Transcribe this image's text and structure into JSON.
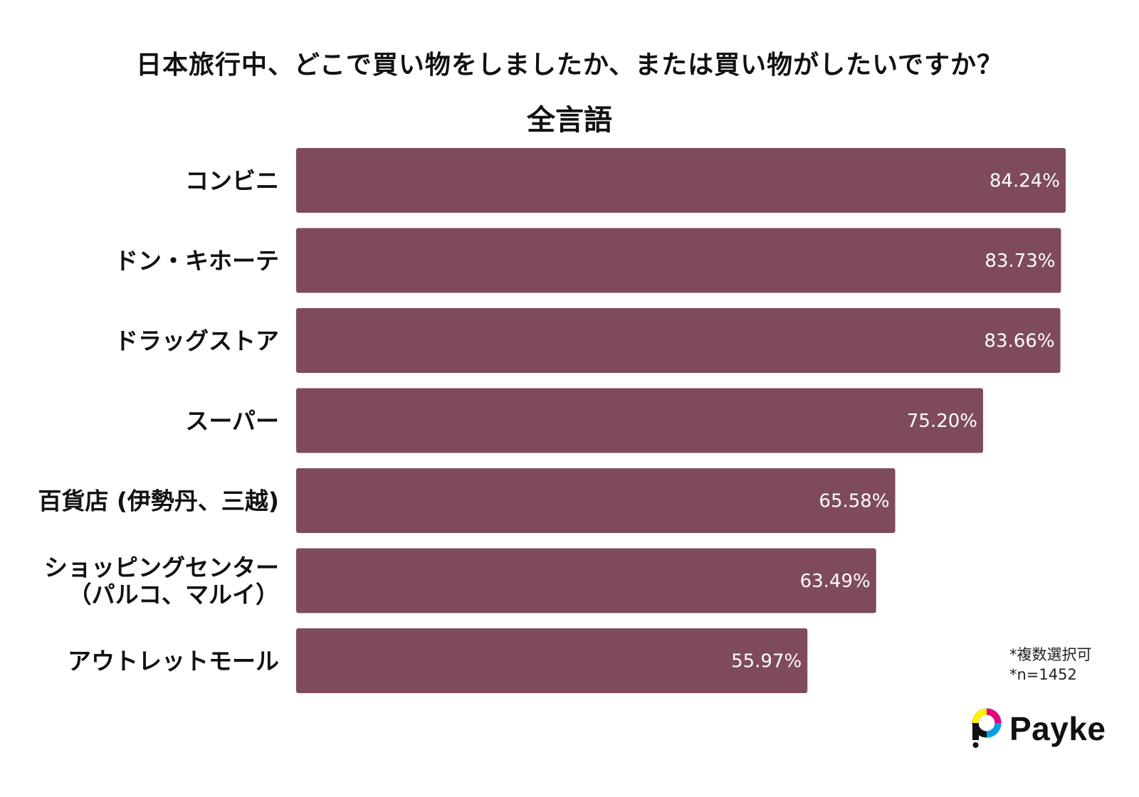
{
  "header": {
    "title": "日本旅行中、どこで買い物をしましたか、または買い物がしたいですか？",
    "subtitle": "全言語"
  },
  "chart_data": {
    "type": "bar",
    "orientation": "horizontal",
    "title": "日本旅行中、どこで買い物をしましたか、または買い物がしたいですか？",
    "subtitle": "全言語",
    "categories": [
      [
        "コンビニ"
      ],
      [
        "ドン・キホーテ"
      ],
      [
        "ドラッグストア"
      ],
      [
        "スーパー"
      ],
      [
        "百貨店 (伊勢丹、三越)"
      ],
      [
        "ショッピングセンター",
        "（パルコ、マルイ）"
      ],
      [
        "アウトレットモール"
      ]
    ],
    "values": [
      84.24,
      83.73,
      83.66,
      75.2,
      65.58,
      63.49,
      55.97
    ],
    "value_labels": [
      "84.24%",
      "83.73%",
      "83.66%",
      "75.20%",
      "65.58%",
      "63.49%",
      "55.97%"
    ],
    "unit": "%",
    "bar_color": "#7f4b5b",
    "xlim": [
      0,
      84.24
    ],
    "grid": false,
    "legend": "none"
  },
  "notes": [
    "*複数選択可",
    "*n=1452"
  ],
  "brand": {
    "name": "Payke",
    "icon": "payke-logo-icon",
    "colors": [
      "#e6007e",
      "#00a0e9",
      "#fff100",
      "#111111"
    ]
  }
}
